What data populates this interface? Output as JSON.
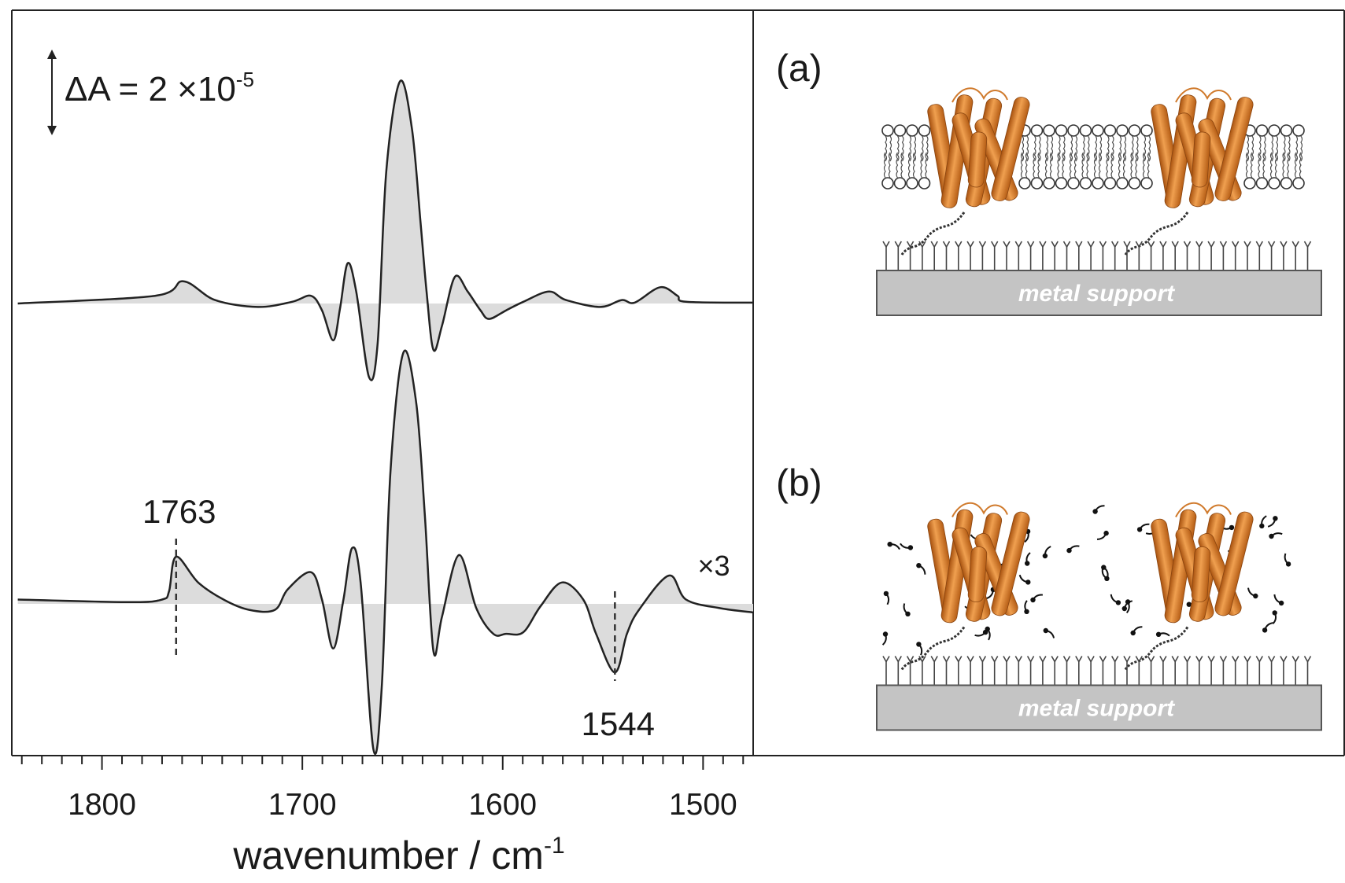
{
  "chart_data": {
    "type": "line",
    "xlim": [
      1845,
      1475
    ],
    "xticks": [
      1800,
      1700,
      1600,
      1500
    ],
    "xminorticks": [
      1840,
      1830,
      1820,
      1810,
      1790,
      1780,
      1770,
      1760,
      1750,
      1740,
      1730,
      1720,
      1710,
      1690,
      1680,
      1670,
      1660,
      1650,
      1640,
      1630,
      1620,
      1610,
      1590,
      1580,
      1570,
      1560,
      1550,
      1540,
      1530,
      1520,
      1510,
      1490,
      1480
    ],
    "x_label": "wavenumber / cm",
    "x_label_superscript": "-1",
    "scale_bar": {
      "value": 2,
      "label": "ΔA = 2 ×10",
      "label_superscript": "-5"
    },
    "series": [
      {
        "color": "#222222",
        "fill": "#dcdcdc",
        "x": [
          1842,
          1773.5,
          1759.4,
          1743.6,
          1722.2,
          1705.1,
          1695.7,
          1690.2,
          1684.6,
          1681.2,
          1677.4,
          1673.1,
          1666.7,
          1662.4,
          1658.1,
          1651.3,
          1645.3,
          1641,
          1638,
          1634.6,
          1630.3,
          1623.9,
          1617.5,
          1611.1,
          1606.8,
          1598.3,
          1589.7,
          1576.9,
          1568.4,
          1551.3,
          1540.6,
          1534.2,
          1521.4,
          1512.8,
          1508.5,
          1475.2
        ],
        "values": [
          0,
          0.18,
          0.52,
          0.08,
          -0.08,
          0.04,
          0.18,
          -0.16,
          -0.86,
          -0.12,
          0.94,
          0.28,
          -1.72,
          -0.92,
          3.08,
          5.18,
          4.08,
          1.88,
          0.28,
          -1.08,
          -0.52,
          0.62,
          0.28,
          -0.16,
          -0.36,
          -0.16,
          0.04,
          0.28,
          0.08,
          -0.08,
          0.08,
          0.02,
          0.38,
          0.18,
          0.04,
          0.02
        ]
      },
      {
        "color": "#222222",
        "fill": "#dcdcdc",
        "scale_label": "×3",
        "markers": [
          1763,
          1544
        ],
        "x": [
          1842,
          1786.3,
          1770,
          1766.5,
          1763,
          1752,
          1739.3,
          1726.5,
          1713.7,
          1707.3,
          1695.7,
          1690.2,
          1684.6,
          1679.5,
          1675.2,
          1670.9,
          1664.5,
          1660.3,
          1656,
          1649.6,
          1643.2,
          1638.9,
          1634.6,
          1630.3,
          1621.8,
          1613.2,
          1604.7,
          1598.3,
          1589.7,
          1581.2,
          1570.5,
          1559.8,
          1553.4,
          1544,
          1538,
          1532,
          1517,
          1508.5,
          1491.5,
          1475
        ],
        "values": [
          0.1,
          0.04,
          0.1,
          0.3,
          1.1,
          0.5,
          0.1,
          -0.14,
          -0.14,
          0.34,
          0.74,
          0.1,
          -1.04,
          0.1,
          1.3,
          0.5,
          -3.4,
          -1.9,
          3.1,
          5.86,
          4.7,
          2.1,
          -1.1,
          -0.3,
          1.14,
          -0.1,
          -0.7,
          -0.7,
          -0.66,
          -0.06,
          0.5,
          0.1,
          -0.7,
          -1.6,
          -0.7,
          -0.14,
          0.66,
          0.1,
          -0.1,
          -0.2
        ]
      }
    ]
  },
  "panels": [
    {
      "label": "(a)",
      "support": "metal support"
    },
    {
      "label": "(b)",
      "support": "metal support"
    }
  ]
}
